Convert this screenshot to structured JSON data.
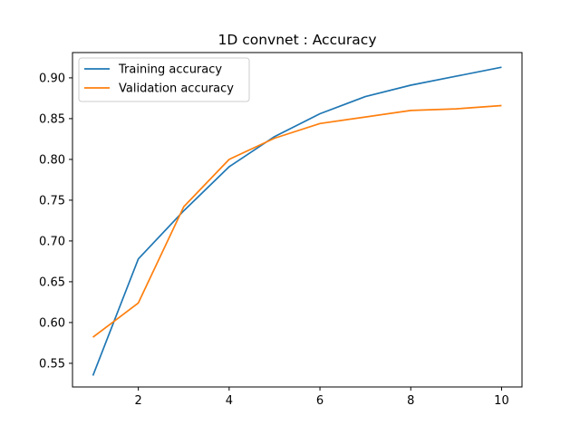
{
  "chart_data": {
    "type": "line",
    "title": "1D convnet : Accuracy",
    "xlabel": "",
    "ylabel": "",
    "x": [
      1,
      2,
      3,
      4,
      5,
      6,
      7,
      8,
      9,
      10
    ],
    "xlim": [
      0.55,
      10.45
    ],
    "ylim": [
      0.521,
      0.931
    ],
    "xticks": [
      2,
      4,
      6,
      8,
      10
    ],
    "yticks": [
      0.55,
      0.6,
      0.65,
      0.7,
      0.75,
      0.8,
      0.85,
      0.9
    ],
    "xtick_labels": [
      "2",
      "4",
      "6",
      "8",
      "10"
    ],
    "ytick_labels": [
      "0.55",
      "0.60",
      "0.65",
      "0.70",
      "0.75",
      "0.80",
      "0.85",
      "0.90"
    ],
    "grid": false,
    "legend_position": "top-left",
    "series": [
      {
        "name": "Training accuracy",
        "color": "#1f77b4",
        "values": [
          0.535,
          0.678,
          0.737,
          0.791,
          0.828,
          0.856,
          0.877,
          0.891,
          0.902,
          0.913
        ]
      },
      {
        "name": "Validation accuracy",
        "color": "#ff7f0e",
        "values": [
          0.582,
          0.624,
          0.742,
          0.8,
          0.826,
          0.844,
          0.852,
          0.86,
          0.862,
          0.866
        ]
      }
    ]
  }
}
